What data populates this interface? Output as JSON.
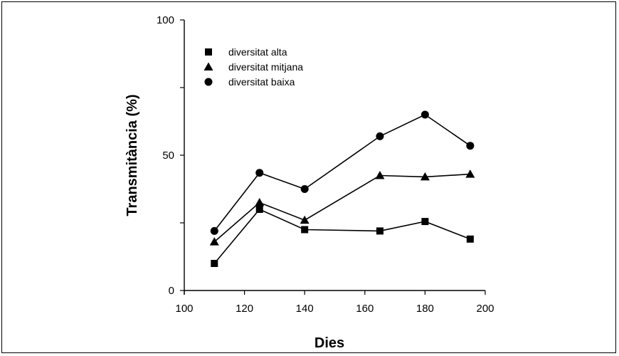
{
  "chart_data": {
    "type": "line",
    "title": "",
    "xlabel": "Dies",
    "ylabel": "Transmitància (%)",
    "xlim": [
      100,
      200
    ],
    "ylim": [
      0,
      100
    ],
    "xticks": [
      "100",
      "120",
      "140",
      "160",
      "180",
      "200"
    ],
    "yticks": [
      "0",
      "50",
      "100"
    ],
    "y_minor_ticks": [
      25,
      75
    ],
    "grid": false,
    "legend_position": "top-left",
    "x": [
      110,
      125,
      140,
      165,
      180,
      195
    ],
    "series": [
      {
        "name": "diversitat alta",
        "marker": "square",
        "values": [
          10,
          30,
          22.5,
          22,
          25.5,
          19
        ]
      },
      {
        "name": "diversitat mitjana",
        "marker": "triangle",
        "values": [
          18,
          32.5,
          26,
          42.5,
          42,
          43
        ]
      },
      {
        "name": "diversitat baixa",
        "marker": "circle",
        "values": [
          22,
          43.5,
          37.5,
          57,
          65,
          53.5
        ]
      }
    ],
    "colors": {
      "ink": "#000000",
      "background": "#ffffff"
    }
  }
}
